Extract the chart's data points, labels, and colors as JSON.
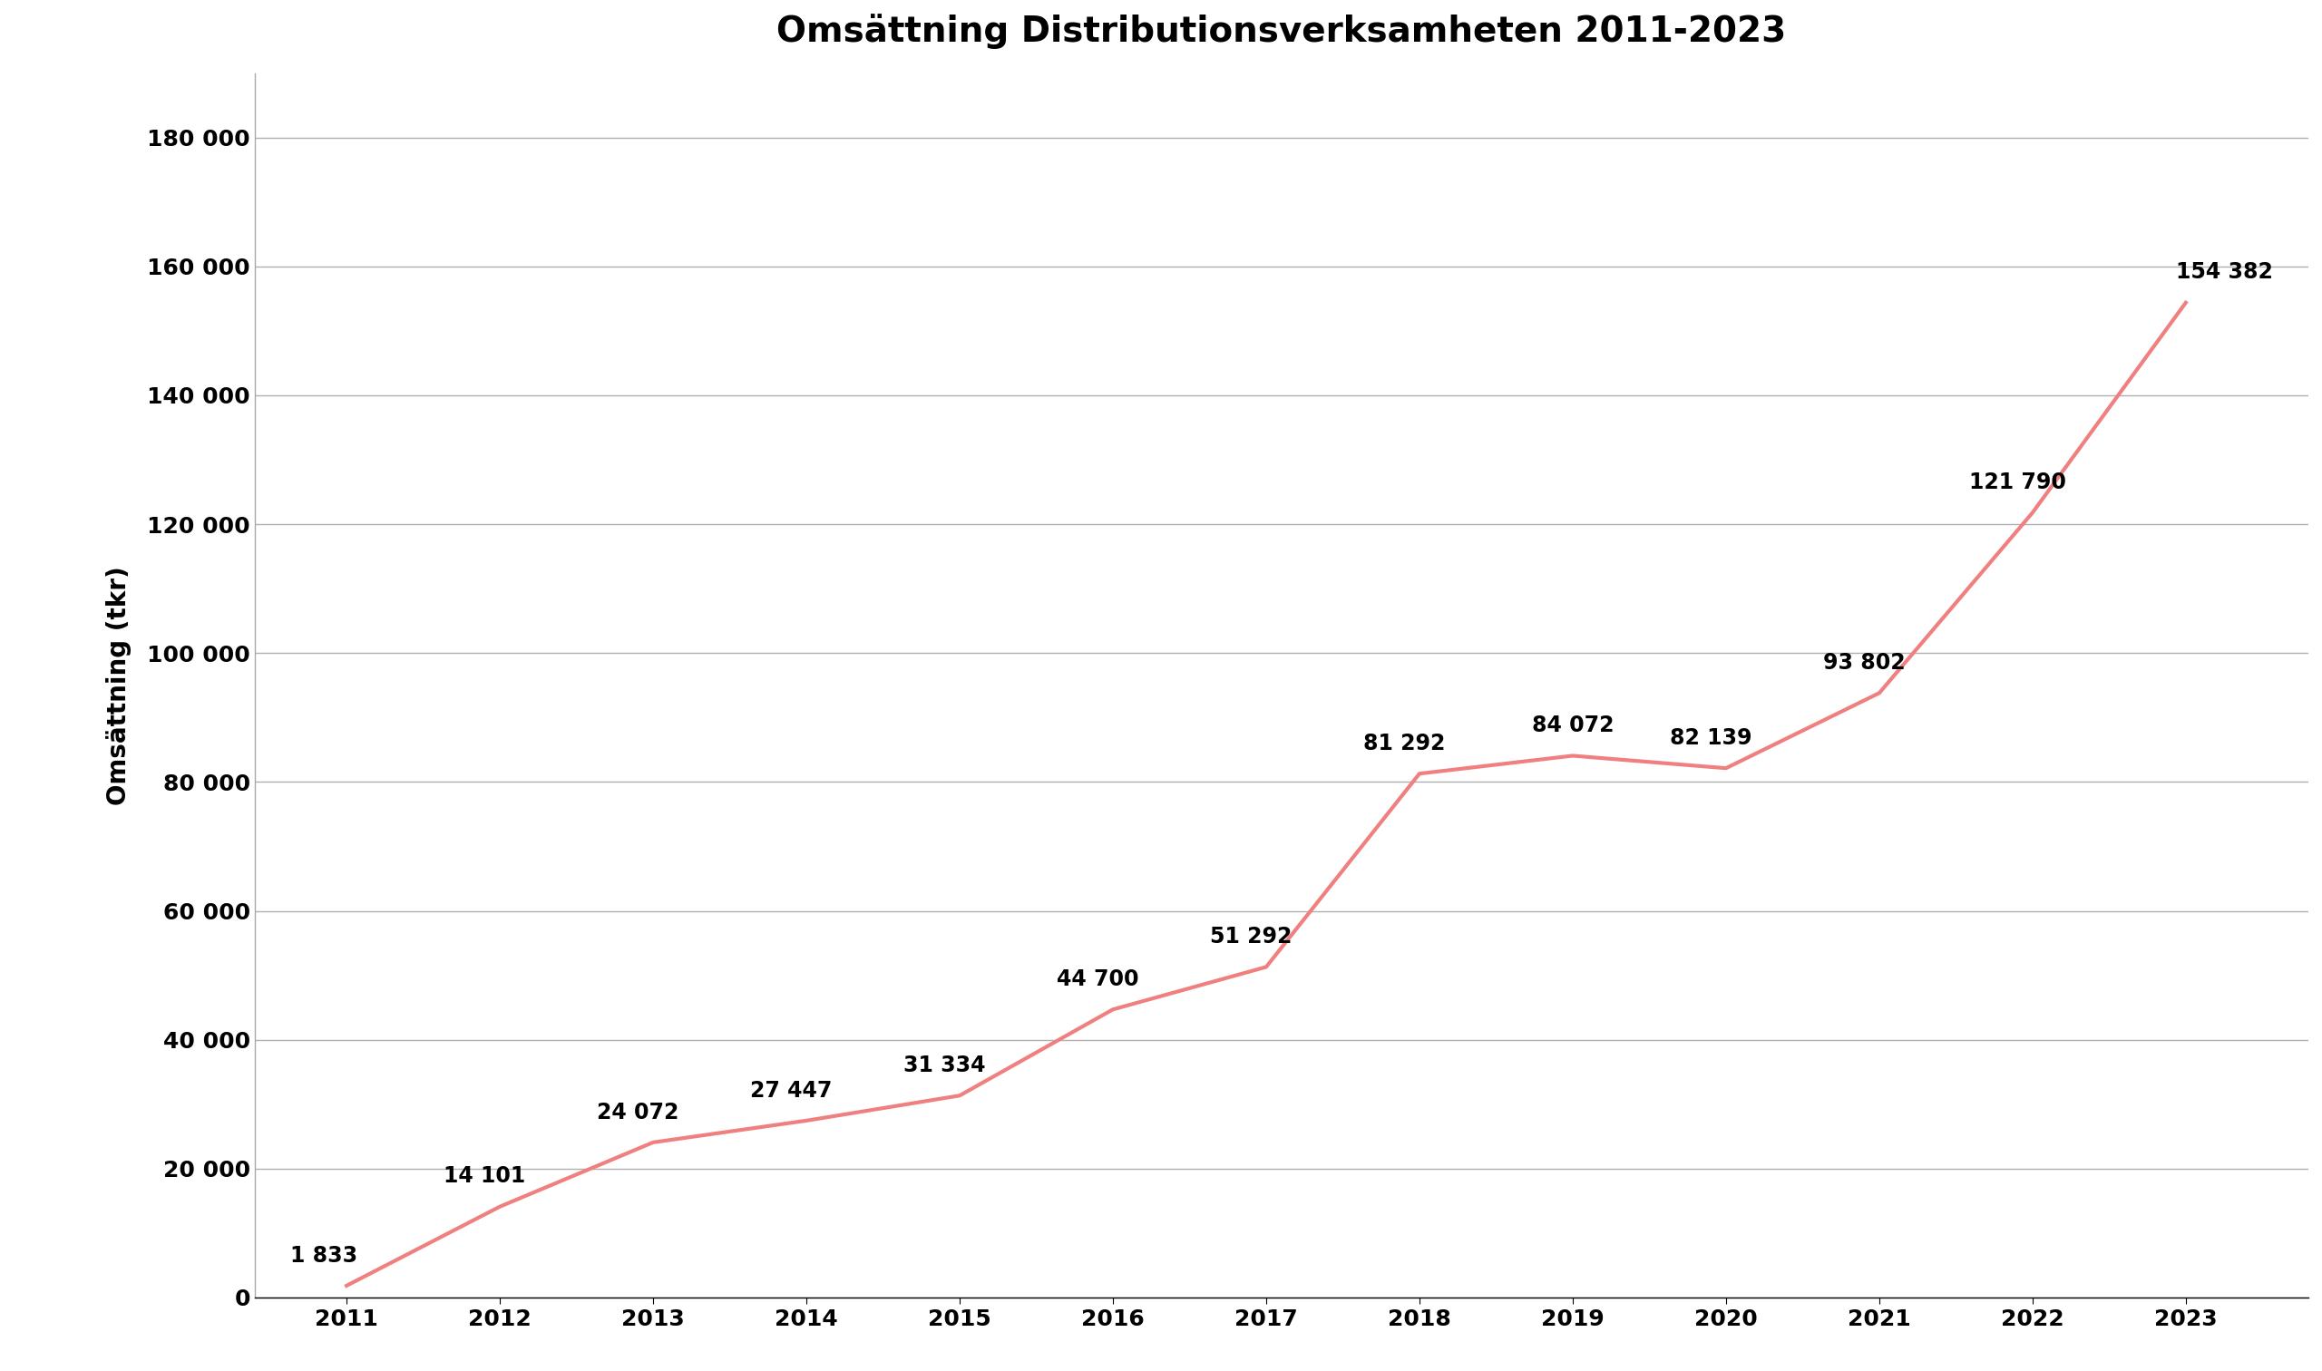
{
  "title": "Omsättning Distributionsverksamheten 2011-2023",
  "years": [
    2011,
    2012,
    2013,
    2014,
    2015,
    2016,
    2017,
    2018,
    2019,
    2020,
    2021,
    2022,
    2023
  ],
  "values": [
    1833,
    14101,
    24072,
    27447,
    31334,
    44700,
    51292,
    81292,
    84072,
    82139,
    93802,
    121790,
    154382
  ],
  "line_color": "#f08080",
  "line_width": 3.0,
  "ylabel": "Omsättning (tkr)",
  "ylim": [
    0,
    190000
  ],
  "yticks": [
    0,
    20000,
    40000,
    60000,
    80000,
    100000,
    120000,
    140000,
    160000,
    180000
  ],
  "background_color": "#ffffff",
  "grid_color": "#b0b0b0",
  "title_fontsize": 28,
  "axis_label_fontsize": 20,
  "tick_fontsize": 18,
  "annotation_fontsize": 17,
  "font_weight": "bold"
}
